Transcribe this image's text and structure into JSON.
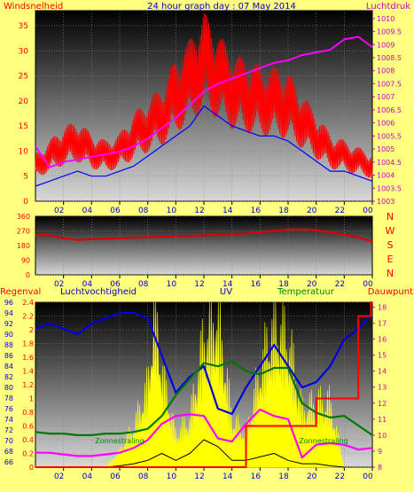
{
  "colors": {
    "wind": "#ff0000",
    "gust_avg": "#0000ff",
    "pressure": "#ff00ff",
    "direction": "#dd0000",
    "humidity": "#0000dd",
    "uv": "#ffff00",
    "temperature": "#007700",
    "dewpoint": "#ff00ff",
    "rain": "#ff0000",
    "solar_black": "#000000",
    "title_blue": "#0000cc",
    "label_magenta": "#cc00cc",
    "label_red": "#ff0000",
    "label_green": "#008800",
    "background": "#ffff80"
  },
  "chart_data": [
    {
      "type": "line",
      "title": "24 hour graph day : 07 May 2014",
      "left_axis_label": "Windsnelheid",
      "right_axis_label": "Luchtdruk",
      "x_ticks": [
        "02",
        "04",
        "06",
        "08",
        "10",
        "12",
        "14",
        "16",
        "18",
        "20",
        "22",
        "00"
      ],
      "x_hours_range": [
        0,
        24
      ],
      "y_left_ticks": [
        0,
        5,
        10,
        15,
        20,
        25,
        30,
        35
      ],
      "ylim_left": [
        0,
        38
      ],
      "y_right_ticks": [
        1003,
        1003.5,
        1004,
        1004.5,
        1005,
        1005.5,
        1006,
        1006.5,
        1007,
        1007.5,
        1008,
        1008.5,
        1009,
        1009.5,
        1010
      ],
      "y_right_tick_labels": [
        "1003",
        "1003.5",
        "1004",
        "1004.5",
        "1005",
        "1005.5",
        "1006",
        "1006.5",
        "1007",
        "1007.5",
        "1008",
        "1008.5",
        "1009",
        "1009.5",
        "1010"
      ],
      "ylim_right": [
        1003,
        1010.3
      ],
      "series": [
        {
          "axis": "left",
          "x": [
            0,
            1,
            2,
            3,
            4,
            5,
            6,
            7,
            8,
            9,
            10,
            11,
            12,
            13,
            14,
            15,
            16,
            17,
            18,
            19,
            20,
            21,
            22,
            23,
            24
          ],
          "values": [
            7,
            9,
            11,
            12,
            10,
            9,
            10,
            13,
            15,
            17,
            21,
            24,
            28,
            25,
            22,
            21,
            20,
            20,
            19,
            16,
            13,
            10,
            9,
            8,
            7
          ]
        },
        {
          "axis": "left",
          "x": [
            0,
            1,
            2,
            3,
            4,
            5,
            6,
            7,
            8,
            9,
            10,
            11,
            12,
            13,
            14,
            15,
            16,
            17,
            18,
            19,
            20,
            21,
            22,
            23,
            24
          ],
          "values": [
            3,
            4,
            5,
            6,
            5,
            5,
            6,
            7,
            9,
            11,
            13,
            15,
            19,
            17,
            15,
            14,
            13,
            13,
            12,
            10,
            8,
            6,
            6,
            5,
            4
          ]
        },
        {
          "axis": "right",
          "x": [
            0,
            1,
            2,
            3,
            4,
            5,
            6,
            7,
            8,
            9,
            10,
            11,
            12,
            13,
            14,
            15,
            16,
            17,
            18,
            19,
            20,
            21,
            22,
            23,
            24
          ],
          "values": [
            1005.1,
            1004.3,
            1004.5,
            1004.6,
            1004.7,
            1004.8,
            1004.9,
            1005.1,
            1005.4,
            1005.8,
            1006.2,
            1006.7,
            1007.2,
            1007.5,
            1007.7,
            1007.9,
            1008.1,
            1008.3,
            1008.4,
            1008.6,
            1008.7,
            1008.8,
            1009.2,
            1009.3,
            1008.9
          ]
        }
      ]
    },
    {
      "type": "line",
      "y_ticks": [
        0,
        90,
        180,
        270,
        360
      ],
      "ylim": [
        0,
        360
      ],
      "compass_labels": [
        "N",
        "W",
        "S",
        "E",
        "N"
      ],
      "x_ticks": [
        "02",
        "04",
        "06",
        "08",
        "10",
        "12",
        "14",
        "16",
        "18",
        "20",
        "22",
        "00"
      ],
      "series": [
        {
          "x": [
            0,
            1,
            2,
            3,
            4,
            5,
            6,
            7,
            8,
            9,
            10,
            11,
            12,
            13,
            14,
            15,
            16,
            17,
            18,
            19,
            20,
            21,
            22,
            23,
            24
          ],
          "values": [
            245,
            244,
            225,
            215,
            220,
            222,
            225,
            228,
            232,
            235,
            238,
            240,
            243,
            248,
            250,
            255,
            262,
            270,
            278,
            280,
            275,
            262,
            248,
            230,
            205
          ]
        }
      ]
    },
    {
      "type": "line",
      "labels": [
        "Regenval",
        "Luchtvochtigheid",
        "UV",
        "Temperatuur",
        "Dauwpunt"
      ],
      "annotations": [
        "Zonnestraling",
        "Zonnestraling"
      ],
      "x_ticks": [
        "02",
        "04",
        "06",
        "08",
        "10",
        "12",
        "14",
        "16",
        "18",
        "20",
        "22",
        "00"
      ],
      "rain_ticks": [
        "0",
        "0.2",
        "0.4",
        "0.6",
        "0.8",
        "1",
        "1.2",
        "1.4",
        "1.6",
        "1.8",
        "2",
        "2.2",
        "2.4"
      ],
      "ylim_rain": [
        0,
        2.4
      ],
      "humidity_ticks": [
        "66",
        "68",
        "70",
        "72",
        "74",
        "76",
        "78",
        "80",
        "82",
        "84",
        "86",
        "88",
        "90",
        "92",
        "94",
        "96"
      ],
      "ylim_humidity": [
        65,
        96
      ],
      "temp_ticks": [
        "8",
        "9",
        "10",
        "11",
        "12",
        "13",
        "14",
        "15",
        "16",
        "17",
        "18"
      ],
      "ylim_temp": [
        8,
        18.3
      ],
      "series": [
        {
          "name": "Luchtvochtigheid",
          "x": [
            0,
            1,
            2,
            3,
            4,
            5,
            6,
            7,
            8,
            9,
            10,
            11,
            12,
            13,
            14,
            15,
            16,
            17,
            18,
            19,
            20,
            21,
            22,
            23,
            24
          ],
          "values": [
            91,
            92,
            91,
            90,
            92,
            93,
            94,
            94,
            93,
            86,
            79,
            82,
            84,
            76,
            75,
            80,
            84,
            88,
            84,
            80,
            81,
            84,
            89,
            91,
            94
          ]
        },
        {
          "name": "Temperatuur",
          "x": [
            0,
            1,
            2,
            3,
            4,
            5,
            6,
            7,
            8,
            9,
            10,
            11,
            12,
            13,
            14,
            15,
            16,
            17,
            18,
            19,
            20,
            21,
            22,
            23,
            24
          ],
          "values": [
            10.2,
            10.1,
            10.1,
            10.0,
            10.0,
            10.1,
            10.1,
            10.2,
            10.4,
            11.2,
            12.5,
            13.5,
            14.5,
            14.3,
            14.6,
            14.0,
            13.8,
            14.2,
            14.2,
            12.0,
            11.4,
            11.1,
            11.2,
            10.6,
            10.0
          ]
        },
        {
          "name": "Dauwpunt",
          "x": [
            0,
            1,
            2,
            3,
            4,
            5,
            6,
            7,
            8,
            9,
            10,
            11,
            12,
            13,
            14,
            15,
            16,
            17,
            18,
            19,
            20,
            21,
            22,
            23,
            24
          ],
          "values": [
            8.9,
            8.9,
            8.8,
            8.7,
            8.7,
            8.8,
            8.9,
            9.2,
            9.7,
            10.7,
            11.2,
            11.3,
            11.2,
            9.8,
            9.6,
            10.7,
            11.6,
            11.2,
            11.0,
            8.6,
            9.4,
            9.5,
            9.4,
            9.1,
            9.2
          ]
        },
        {
          "name": "Regenval",
          "x": [
            0,
            1,
            2,
            3,
            4,
            5,
            6,
            7,
            8,
            9,
            10,
            11,
            12,
            13,
            14,
            15,
            16,
            17,
            18,
            19,
            20,
            21,
            22,
            23,
            23.9,
            24
          ],
          "values": [
            0,
            0,
            0,
            0,
            0,
            0,
            0,
            0,
            0,
            0,
            0,
            0,
            0,
            0,
            0,
            0.6,
            0.6,
            0.6,
            0.6,
            0.6,
            1.0,
            1.0,
            1.0,
            2.2,
            2.4,
            2.4
          ]
        },
        {
          "name": "UV",
          "x": [
            5,
            6,
            7,
            8,
            8.5,
            9,
            10,
            11,
            12,
            13,
            14,
            15,
            16,
            17,
            18,
            19,
            20,
            21,
            22
          ],
          "values": [
            0,
            0.2,
            0.5,
            1.0,
            2.0,
            1.2,
            0.4,
            0.6,
            1.6,
            1.9,
            0.6,
            0.4,
            1.2,
            1.8,
            1.6,
            0.7,
            0.8,
            0.8,
            0
          ]
        },
        {
          "name": "Zonnestraling",
          "x": [
            5,
            6,
            7,
            8,
            9,
            10,
            11,
            12,
            13,
            14,
            15,
            16,
            17,
            18,
            19,
            20,
            21,
            22
          ],
          "values": [
            0,
            0.02,
            0.05,
            0.1,
            0.2,
            0.1,
            0.2,
            0.4,
            0.3,
            0.1,
            0.1,
            0.15,
            0.2,
            0.1,
            0.05,
            0.05,
            0.02,
            0
          ]
        }
      ]
    }
  ]
}
